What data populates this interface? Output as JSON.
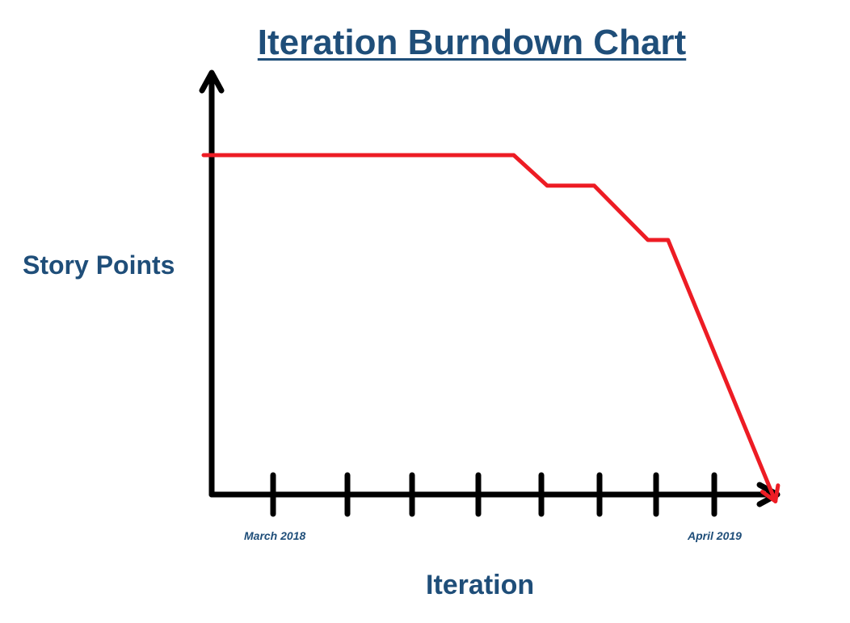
{
  "chart_data": {
    "type": "line",
    "title": "Iteration Burndown Chart",
    "xlabel": "Iteration",
    "ylabel": "Story Points",
    "x_tick_labels": [
      {
        "iteration": 1,
        "label": "March 2018"
      },
      {
        "iteration": 8,
        "label": "April 2019"
      }
    ],
    "iterations": [
      1,
      2,
      3,
      4,
      5,
      6,
      7,
      8
    ],
    "series": [
      {
        "color": "#ed1c24",
        "x": [
          0,
          4.5,
          5,
          5.7,
          6.5,
          6.8,
          8.4
        ],
        "y": [
          100,
          100,
          91,
          91,
          75,
          75,
          -2
        ]
      }
    ],
    "xlim": [
      0,
      9
    ],
    "ylim": [
      0,
      130
    ],
    "grid": false,
    "axis_color": "#000000",
    "text_color": "#1f4e79"
  }
}
